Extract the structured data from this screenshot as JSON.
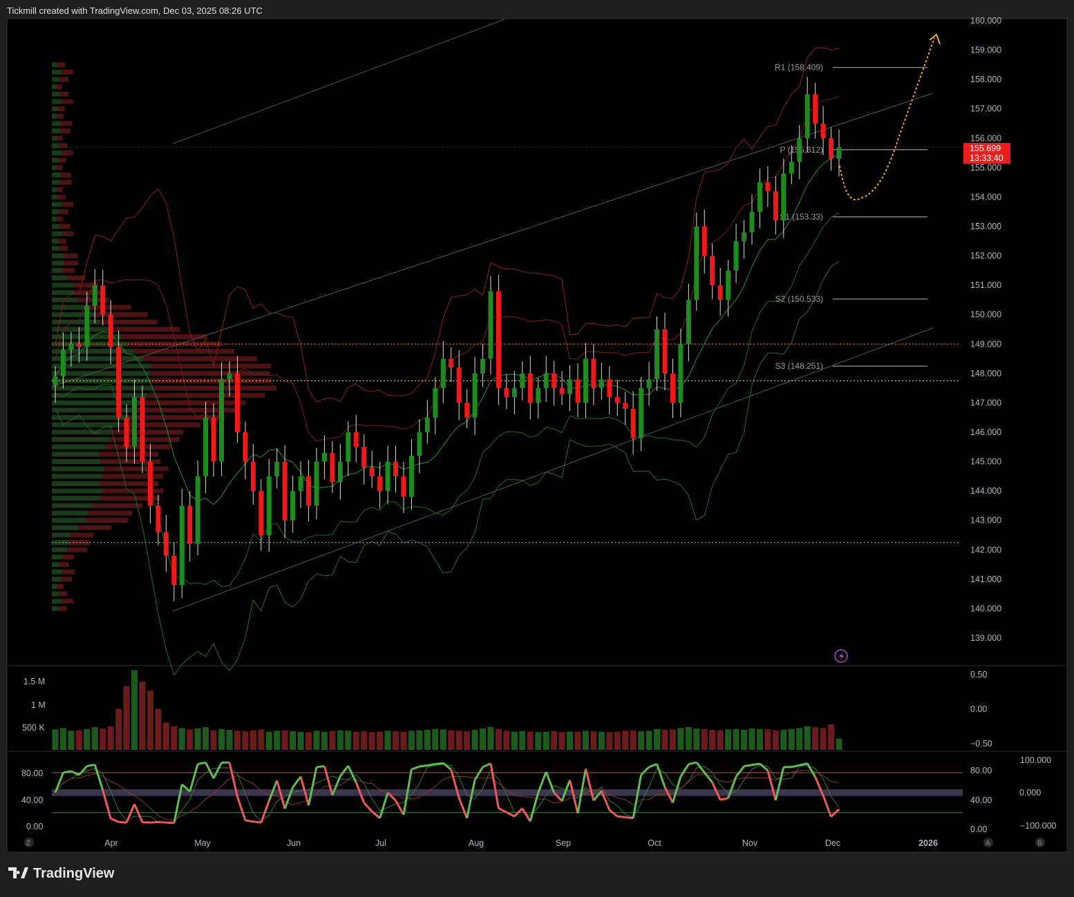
{
  "header": {
    "caption": "Tickmill created with TradingView.com, Dec 03, 2025 08:26 UTC"
  },
  "footer": {
    "brand": "TradingView"
  },
  "colors": {
    "up": "#1f8a1f",
    "down": "#f01818",
    "price_badge": "#f21b1b",
    "projection": "#f5a623",
    "background": "#000000"
  },
  "price_badge": {
    "price": "155.699",
    "countdown": "13:33:40"
  },
  "pivots": [
    {
      "label": "R1 (158.409)",
      "value": 158.409
    },
    {
      "label": "P (155.612)",
      "value": 155.612
    },
    {
      "label": "S1 (153.33)",
      "value": 153.33
    },
    {
      "label": "S2 (150.533)",
      "value": 150.533
    },
    {
      "label": "S3 (148.251)",
      "value": 148.251
    }
  ],
  "levels": [
    {
      "value": 149.0,
      "color": "#e0702a"
    },
    {
      "value": 147.75,
      "color": "#e8c33a"
    },
    {
      "value": 142.25,
      "color": "#6abf4b"
    }
  ],
  "price_axis": [
    "160.000",
    "159.000",
    "158.000",
    "157.000",
    "156.000",
    "155.000",
    "154.000",
    "153.000",
    "152.000",
    "151.000",
    "150.000",
    "149.000",
    "148.000",
    "147.000",
    "146.000",
    "145.000",
    "144.000",
    "143.000",
    "142.000",
    "141.000",
    "140.000",
    "139.000"
  ],
  "volume_axis": {
    "left": [
      "1.5 M",
      "1 M",
      "500 K"
    ],
    "right": [
      "0.50",
      "0.00",
      "−0.50"
    ]
  },
  "osc_axis": {
    "left": [
      "80.00",
      "40.00",
      "0.00"
    ],
    "right": [
      "80.00",
      "40.00",
      "0.00"
    ],
    "far_right": [
      "100.000",
      "0.000",
      "−100.000"
    ]
  },
  "time_axis": [
    "Apr",
    "May",
    "Jun",
    "Jul",
    "Aug",
    "Sep",
    "Oct",
    "Nov",
    "Dec",
    "2026"
  ],
  "buttons": {
    "z": "Z",
    "a": "A",
    "b": "B"
  },
  "chart_data": {
    "type": "candlestick",
    "title": "",
    "ylim": [
      139,
      160
    ],
    "x_ticks": [
      "Apr",
      "May",
      "Jun",
      "Jul",
      "Aug",
      "Sep",
      "Oct",
      "Nov",
      "Dec",
      "2026"
    ],
    "closes": [
      147.9,
      148.8,
      149.0,
      148.9,
      150.3,
      151.0,
      150.0,
      148.9,
      146.5,
      145.5,
      147.2,
      145.0,
      143.5,
      142.6,
      141.8,
      140.8,
      143.5,
      142.2,
      144.5,
      146.5,
      145.0,
      147.8,
      148.0,
      146.0,
      145.0,
      144.0,
      142.5,
      144.5,
      145.0,
      143.0,
      144.0,
      144.5,
      143.5,
      145.0,
      145.3,
      144.3,
      145.0,
      146.0,
      145.5,
      144.8,
      144.5,
      144.0,
      145.0,
      144.5,
      143.8,
      145.2,
      146.0,
      146.5,
      147.5,
      148.5,
      148.2,
      147.0,
      146.5,
      148.0,
      148.5,
      150.8,
      147.5,
      147.2,
      147.5,
      148.0,
      147.0,
      147.5,
      148.0,
      147.5,
      147.3,
      147.8,
      147.0,
      148.5,
      147.5,
      147.8,
      147.2,
      147.0,
      146.8,
      145.8,
      147.5,
      147.8,
      149.5,
      148.0,
      147.0,
      149.0,
      150.5,
      153.0,
      152.0,
      151.0,
      150.5,
      151.5,
      152.5,
      152.8,
      153.5,
      154.5,
      154.2,
      153.2,
      154.8,
      155.2,
      156.0,
      157.5,
      156.5,
      156.0,
      155.3,
      155.7
    ],
    "volume": [
      450000,
      480000,
      420000,
      430000,
      460000,
      500000,
      470000,
      520000,
      900000,
      1400000,
      1750000,
      1500000,
      1300000,
      900000,
      600000,
      520000,
      480000,
      450000,
      470000,
      500000,
      430000,
      460000,
      440000,
      420000,
      410000,
      430000,
      450000,
      400000,
      420000,
      430000,
      410000,
      400000,
      390000,
      420000,
      400000,
      410000,
      430000,
      420000,
      400000,
      410000,
      390000,
      400000,
      420000,
      410000,
      400000,
      420000,
      430000,
      440000,
      460000,
      450000,
      430000,
      420000,
      410000,
      440000,
      470000,
      500000,
      460000,
      420000,
      400000,
      410000,
      400000,
      390000,
      400000,
      410000,
      390000,
      400000,
      400000,
      420000,
      410000,
      400000,
      390000,
      400000,
      420000,
      430000,
      410000,
      420000,
      460000,
      440000,
      450000,
      480000,
      500000,
      470000,
      460000,
      440000,
      430000,
      450000,
      460000,
      440000,
      470000,
      460000,
      450000,
      430000,
      440000,
      460000,
      480000,
      520000,
      500000,
      480000,
      560000,
      250000
    ]
  }
}
